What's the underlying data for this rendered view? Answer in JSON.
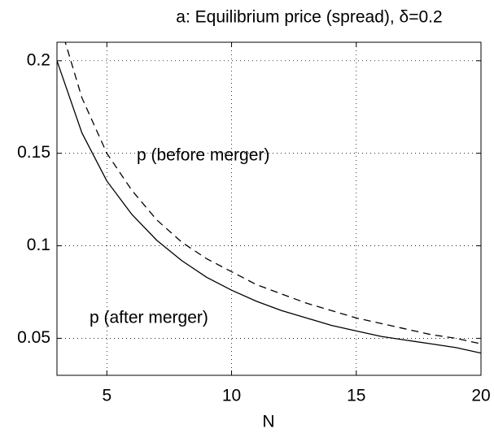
{
  "chart_data": {
    "type": "line",
    "title": "a: Equilibrium price (spread), δ=0.2",
    "xlabel": "N",
    "annotations": [
      "p (before merger)",
      "p (after merger)"
    ],
    "x": [
      3,
      4,
      5,
      6,
      7,
      8,
      9,
      10,
      11,
      12,
      13,
      14,
      15,
      16,
      17,
      18,
      19,
      20
    ],
    "series": [
      {
        "color": "#000000",
        "style": "solid",
        "values": [
          0.2,
          0.161,
          0.135,
          0.117,
          0.103,
          0.092,
          0.083,
          0.076,
          0.07,
          0.065,
          0.061,
          0.057,
          0.054,
          0.051,
          0.049,
          0.047,
          0.045,
          0.042
        ]
      },
      {
        "color": "#000000",
        "style": "dashed",
        "values": [
          0.225,
          0.18,
          0.15,
          0.13,
          0.114,
          0.102,
          0.093,
          0.086,
          0.079,
          0.074,
          0.069,
          0.065,
          0.061,
          0.058,
          0.055,
          0.052,
          0.05,
          0.047
        ]
      }
    ],
    "xlim": [
      3,
      20
    ],
    "xticks": [
      5,
      10,
      15,
      20
    ],
    "ylim": [
      0.03,
      0.21
    ],
    "yticks": [
      0.05,
      0.1,
      0.15,
      0.2
    ],
    "grid": true
  }
}
